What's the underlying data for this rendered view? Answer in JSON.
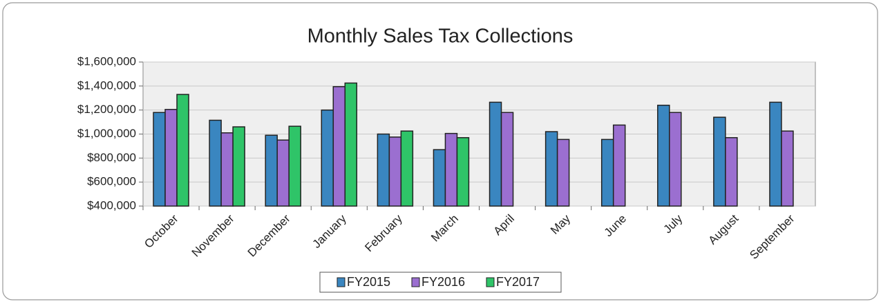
{
  "chart_data": {
    "type": "bar",
    "title": "Monthly Sales Tax Collections",
    "categories": [
      "October",
      "November",
      "December",
      "January",
      "February",
      "March",
      "April",
      "May",
      "June",
      "July",
      "August",
      "September"
    ],
    "series": [
      {
        "name": "FY2015",
        "color": "#3a86c0",
        "values": [
          1180000,
          1115000,
          990000,
          1200000,
          1000000,
          870000,
          1265000,
          1020000,
          955000,
          1240000,
          1140000,
          1265000
        ]
      },
      {
        "name": "FY2016",
        "color": "#9b6fd0",
        "values": [
          1205000,
          1010000,
          950000,
          1395000,
          975000,
          1005000,
          1180000,
          955000,
          1075000,
          1180000,
          970000,
          1025000
        ]
      },
      {
        "name": "FY2017",
        "color": "#2fc468",
        "values": [
          1330000,
          1060000,
          1065000,
          1425000,
          1025000,
          970000,
          null,
          null,
          null,
          null,
          null,
          null
        ]
      }
    ],
    "ylim": [
      400000,
      1600000
    ],
    "yticks": [
      {
        "value": 400000,
        "label": "$400,000"
      },
      {
        "value": 600000,
        "label": "$600,000"
      },
      {
        "value": 800000,
        "label": "$800,000"
      },
      {
        "value": 1000000,
        "label": "$1,000,000"
      },
      {
        "value": 1200000,
        "label": "$1,200,000"
      },
      {
        "value": 1400000,
        "label": "$1,400,000"
      },
      {
        "value": 1600000,
        "label": "$1,600,000"
      }
    ],
    "grid": true,
    "legend": "bottom"
  }
}
